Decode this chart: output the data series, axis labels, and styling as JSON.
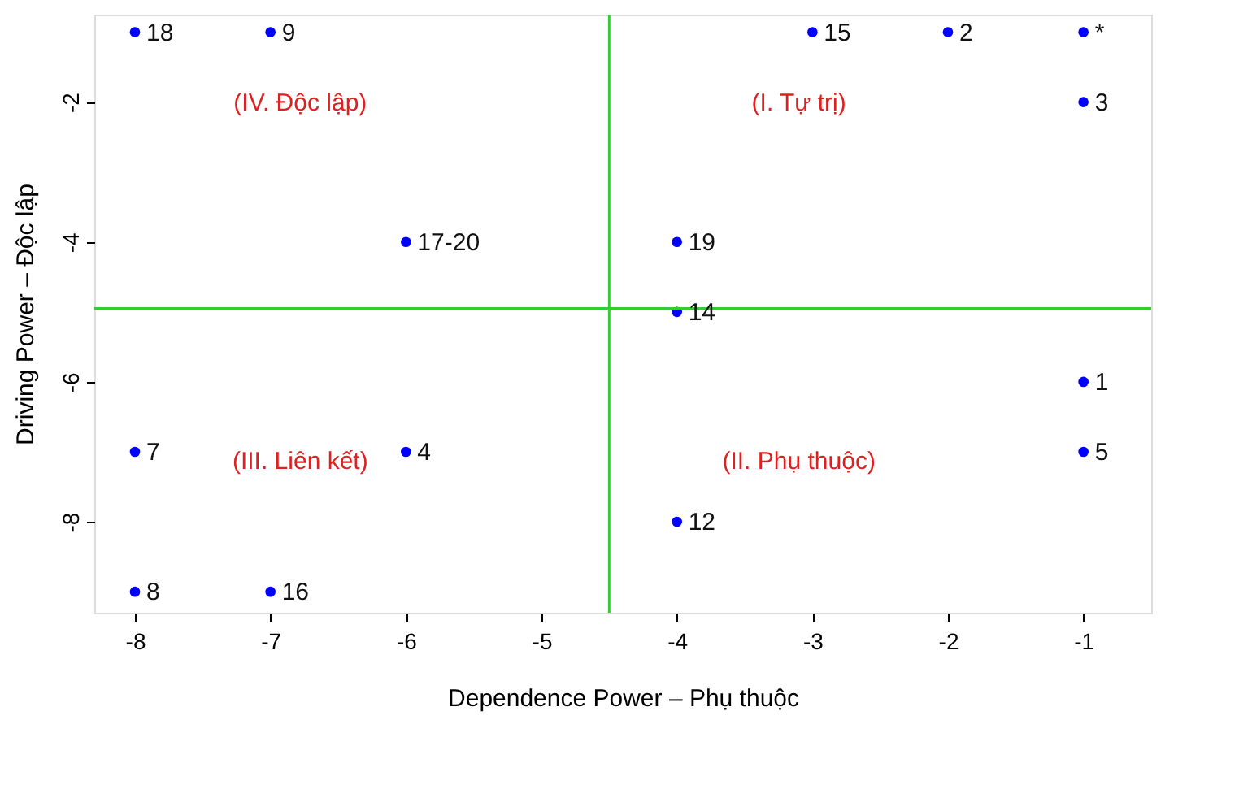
{
  "chart_data": {
    "type": "scatter",
    "xlabel": "Dependence Power – Phụ thuộc",
    "ylabel": "Driving Power – Độc lập",
    "x": [
      -8,
      -7,
      -3,
      -2,
      -1,
      -1,
      -6,
      -4,
      -4,
      -1,
      -8,
      -6,
      -1,
      -4,
      -8,
      -7
    ],
    "series": [
      {
        "color": "#0000ff",
        "values": [
          -1,
          -1,
          -1,
          -1,
          -1,
          -2,
          -4,
          -4,
          -5,
          -6,
          -7,
          -7,
          -7,
          -8,
          -9,
          -9
        ]
      }
    ],
    "marker": "circle",
    "grid": false,
    "xlim": [
      -8.3,
      -0.5
    ],
    "xticks": [
      -8,
      -7,
      -6,
      -5,
      -4,
      -3,
      -2,
      -1
    ],
    "ylim": [
      -9.3,
      -0.75
    ],
    "yticks": [
      -2,
      -4,
      -6,
      -8
    ],
    "ref_lines": [
      {
        "axis": "x",
        "value": -4.5,
        "color": "#33cc33"
      },
      {
        "axis": "y",
        "value": -4.95,
        "color": "#33cc33"
      }
    ],
    "annotations": [
      "(I. Tự trị)",
      "(II. Phụ thuộc)",
      "(III. Liên kết)",
      "(IV. Độc lập)",
      {
        "text": "18",
        "x": -8,
        "y": -1
      },
      {
        "text": "9",
        "x": -7,
        "y": -1
      },
      {
        "text": "15",
        "x": -3,
        "y": -1
      },
      {
        "text": "2",
        "x": -2,
        "y": -1
      },
      {
        "text": "*",
        "x": -1,
        "y": -1
      },
      {
        "text": "3",
        "x": -1,
        "y": -2
      },
      {
        "text": "17-20",
        "x": -6,
        "y": -4
      },
      {
        "text": "19",
        "x": -4,
        "y": -4
      },
      {
        "text": "14",
        "x": -4,
        "y": -5
      },
      {
        "text": "1",
        "x": -1,
        "y": -6
      },
      {
        "text": "7",
        "x": -8,
        "y": -7
      },
      {
        "text": "4",
        "x": -6,
        "y": -7
      },
      {
        "text": "5",
        "x": -1,
        "y": -7
      },
      {
        "text": "12",
        "x": -4,
        "y": -8
      },
      {
        "text": "8",
        "x": -8,
        "y": -9
      },
      {
        "text": "16",
        "x": -7,
        "y": -9
      }
    ]
  }
}
